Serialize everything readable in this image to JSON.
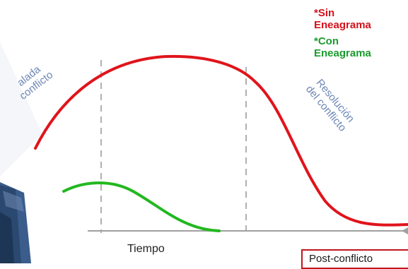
{
  "legend": {
    "without": {
      "text": "*Sin\nEneagrama",
      "color": "#d4121a"
    },
    "with": {
      "text": "*Con\nEneagrama",
      "color": "#1a9c2e"
    }
  },
  "labels": {
    "left": "alada\nconflicto",
    "right": "Resolución\ndel conflicto",
    "x_axis": "Tiempo",
    "post": "Post-conflicto"
  },
  "colors": {
    "label_blue": "#6d87b5",
    "axis": "#a0a0a0",
    "dash": "#b0b0b0",
    "red_curve": "#e0141c",
    "green_curve": "#22b820"
  },
  "icons": {
    "photo_corner": "photo-fragment"
  }
}
